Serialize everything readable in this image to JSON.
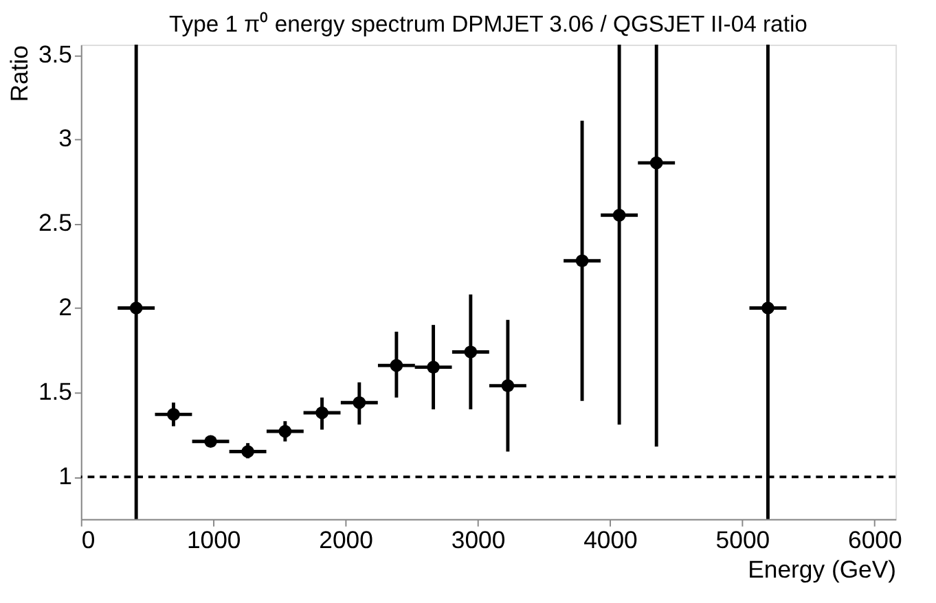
{
  "chart_data": {
    "type": "scatter",
    "title": "Type 1 π⁰ energy spectrum DPMJET 3.06 / QGSJET II-04 ratio",
    "xlabel": "Energy (GeV)",
    "ylabel": "Ratio",
    "x": [
      418,
      700,
      981,
      1262,
      1544,
      1823,
      2105,
      2386,
      2665,
      2947,
      3228,
      3790,
      4071,
      4352,
      5195
    ],
    "series": [
      {
        "color": "#000000",
        "values": [
          2.0,
          1.37,
          1.21,
          1.15,
          1.27,
          1.38,
          1.44,
          1.66,
          1.65,
          1.74,
          1.54,
          2.28,
          2.55,
          2.86,
          2.0
        ],
        "errors": [
          [
            0.75,
            3.56
          ],
          [
            1.3,
            1.44
          ],
          [
            1.19,
            1.23
          ],
          [
            1.11,
            1.2
          ],
          [
            1.21,
            1.33
          ],
          [
            1.28,
            1.47
          ],
          [
            1.31,
            1.56
          ],
          [
            1.47,
            1.86
          ],
          [
            1.4,
            1.9
          ],
          [
            1.4,
            2.08
          ],
          [
            1.15,
            1.93
          ],
          [
            1.45,
            3.11
          ],
          [
            1.31,
            3.56
          ],
          [
            1.18,
            3.56
          ],
          [
            0.75,
            3.56
          ]
        ],
        "xerrors": [
          140,
          140,
          140,
          140,
          140,
          140,
          140,
          140,
          140,
          140,
          140,
          140,
          140,
          140,
          140
        ]
      }
    ],
    "xlim": [
      0,
      6160
    ],
    "ylim": [
      0.75,
      3.56
    ],
    "xticks": [
      0,
      1000,
      2000,
      3000,
      4000,
      5000,
      6000
    ],
    "yticks": [
      1,
      1.5,
      2,
      2.5,
      3,
      3.5
    ],
    "ref_lines": [
      {
        "axis": "y",
        "value": 1,
        "color": "#000000",
        "line_style": "dashed"
      }
    ],
    "marker": "circle",
    "grid": false
  }
}
